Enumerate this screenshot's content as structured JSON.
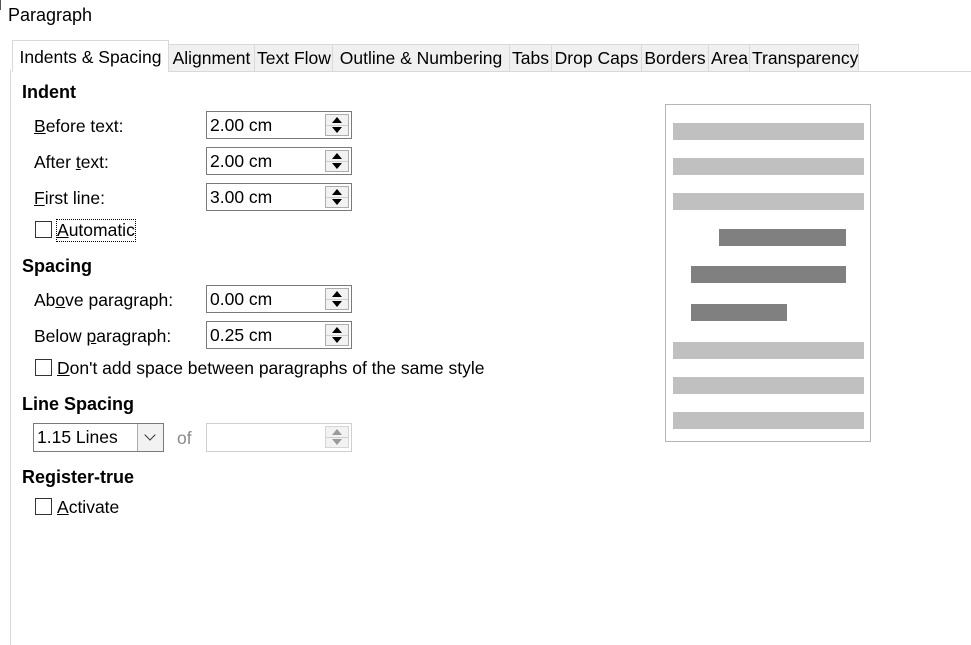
{
  "window": {
    "title": "Paragraph"
  },
  "tabs": [
    {
      "label": "Indents & Spacing",
      "active": true
    },
    {
      "label": "Alignment"
    },
    {
      "label": "Text Flow"
    },
    {
      "label": "Outline & Numbering"
    },
    {
      "label": "Tabs"
    },
    {
      "label": "Drop Caps"
    },
    {
      "label": "Borders"
    },
    {
      "label": "Area"
    },
    {
      "label": "Transparency"
    }
  ],
  "indent": {
    "title": "Indent",
    "before_text": {
      "label_hot": "B",
      "label_rest": "efore text:",
      "value": "2.00 cm"
    },
    "after_text": {
      "label_pre": "After ",
      "label_hot": "t",
      "label_rest": "ext:",
      "value": "2.00 cm"
    },
    "first_line": {
      "label_hot": "F",
      "label_rest": "irst line:",
      "value": "3.00 cm"
    },
    "automatic": {
      "label_hot": "A",
      "label_rest": "utomatic",
      "checked": false
    }
  },
  "spacing": {
    "title": "Spacing",
    "above": {
      "label_pre": "Ab",
      "label_hot": "o",
      "label_rest": "ve paragraph:",
      "value": "0.00 cm"
    },
    "below": {
      "label_pre": "Below ",
      "label_hot": "p",
      "label_rest": "aragraph:",
      "value": "0.25 cm"
    },
    "dont_add": {
      "label_hot": "D",
      "label_rest": "on't add space between paragraphs of the same style",
      "checked": false
    }
  },
  "line_spacing": {
    "title": "Line Spacing",
    "selected": "1.15 Lines",
    "of_label": "of",
    "of_value": ""
  },
  "register_true": {
    "title": "Register-true",
    "activate": {
      "label_hot": "A",
      "label_rest": "ctivate",
      "checked": false
    }
  },
  "colors": {
    "preview_line_light": "#c0c0c0",
    "preview_line_dark": "#808080"
  }
}
